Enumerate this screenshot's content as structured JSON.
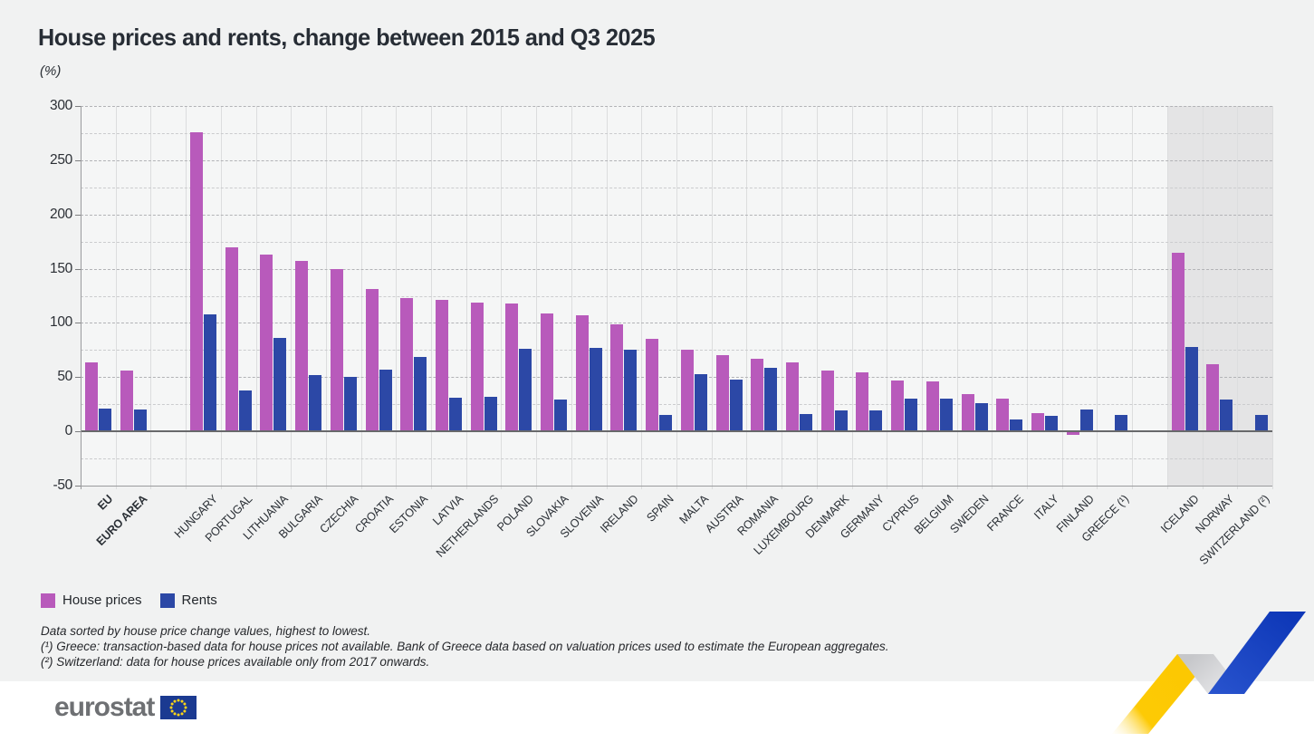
{
  "title": "House prices and rents, change between 2015 and Q3 2025",
  "unit_label": "(%)",
  "legend": {
    "house_prices": "House prices",
    "rents": "Rents"
  },
  "footnotes": [
    "Data sorted by house price change values, highest to lowest.",
    "(¹) Greece: transaction-based data for house prices not available. Bank of Greece data based on valuation prices used to estimate the European aggregates.",
    "(²) Switzerland: data for house prices available only from 2017 onwards."
  ],
  "footer": {
    "logo_text": "eurostat"
  },
  "colors": {
    "house_prices": "#b85abb",
    "rents": "#2c48a6",
    "background": "#f1f2f2",
    "efta_band": "#e4e4e5",
    "footer_background": "#ffffff",
    "ribbon_yellow": "#fcc700",
    "ribbon_blue": "#1443c2",
    "flag_blue": "#1b3a91",
    "flag_stars": "#ffd617"
  },
  "chart_data": {
    "type": "bar",
    "title": "House prices and rents, change between 2015 and Q3 2025",
    "ylabel": "(%)",
    "xlabel": "",
    "ylim": [
      -50,
      300
    ],
    "ytick_step": 50,
    "minor_grid_step": 25,
    "grid": true,
    "legend_position": "bottom-left",
    "categories": [
      "EU",
      "EURO AREA",
      "HUNGARY",
      "PORTUGAL",
      "LITHUANIA",
      "BULGARIA",
      "CZECHIA",
      "CROATIA",
      "ESTONIA",
      "LATVIA",
      "NETHERLANDS",
      "POLAND",
      "SLOVAKIA",
      "SLOVENIA",
      "IRELAND",
      "SPAIN",
      "MALTA",
      "AUSTRIA",
      "ROMANIA",
      "LUXEMBOURG",
      "DENMARK",
      "GERMANY",
      "CYPRUS",
      "BELGIUM",
      "SWEDEN",
      "FRANCE",
      "ITALY",
      "FINLAND",
      "GREECE (¹)",
      "ICELAND",
      "NORWAY",
      "SWITZERLAND (²)"
    ],
    "bold_categories": [
      "EU",
      "EURO AREA"
    ],
    "gap_after_indices": [
      1,
      28
    ],
    "shaded_categories": [
      "ICELAND",
      "NORWAY",
      "SWITZERLAND (²)"
    ],
    "series": [
      {
        "name": "House prices",
        "color": "#b85abb",
        "values": [
          64,
          56,
          276,
          170,
          163,
          157,
          150,
          131,
          123,
          121,
          119,
          118,
          109,
          107,
          99,
          85,
          75,
          70,
          67,
          64,
          56,
          54,
          47,
          46,
          34,
          30,
          17,
          -3,
          null,
          165,
          62,
          null
        ]
      },
      {
        "name": "Rents",
        "color": "#2c48a6",
        "values": [
          21,
          20,
          108,
          38,
          86,
          52,
          50,
          57,
          69,
          31,
          32,
          76,
          29,
          77,
          75,
          15,
          53,
          48,
          59,
          16,
          19,
          19,
          30,
          30,
          26,
          11,
          14,
          20,
          15,
          78,
          29,
          15
        ]
      }
    ]
  }
}
